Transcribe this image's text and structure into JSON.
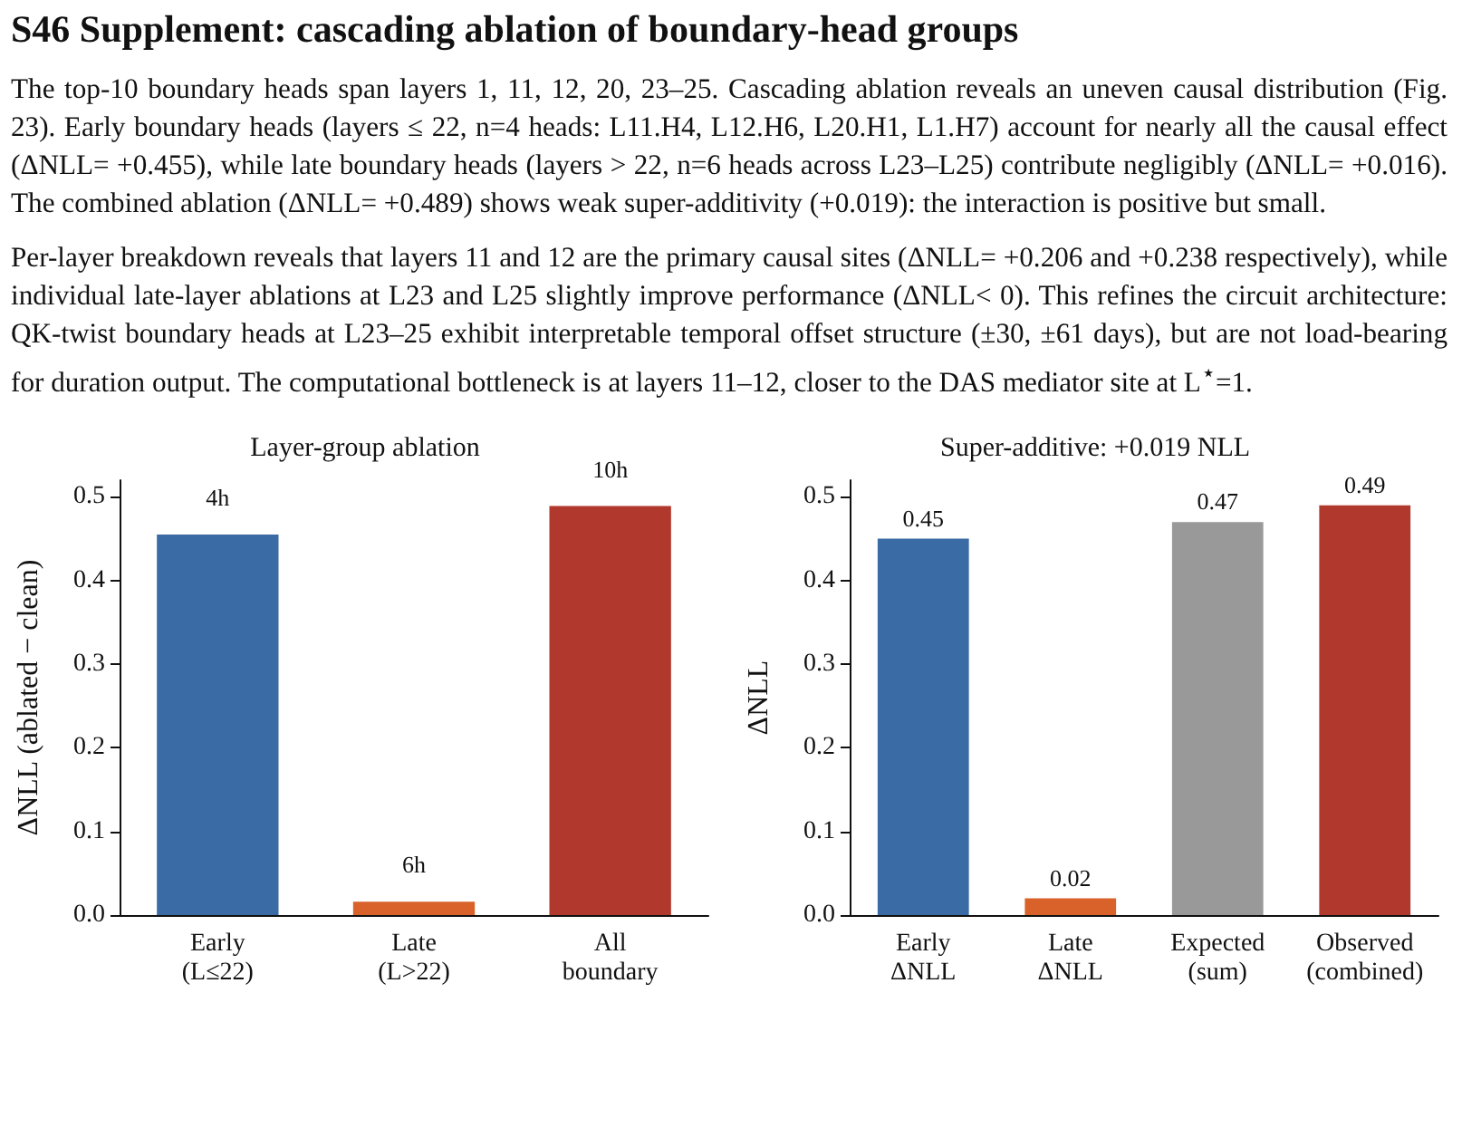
{
  "chart_data": [
    {
      "type": "other",
      "title": "S46   Supplement: cascading ablation of boundary-head groups",
      "annotations": [
        "The top-10 boundary heads span layers 1, 11, 12, 20, 23–25. Cascading ablation reveals an uneven causal distribution (Fig. 23). Early boundary heads (layers ≤ 22, n=4 heads: L11.H4, L12.H6, L20.H1, L1.H7) account for nearly all the causal effect (ΔNLL= +0.455), while late boundary heads (layers > 22, n=6 heads across L23–L25) contribute negligibly (ΔNLL= +0.016). The combined ablation (ΔNLL= +0.489) shows weak super-additivity (+0.019): the interaction is positive but small.",
        "Per-layer breakdown reveals that layers 11 and 12 are the primary causal sites (ΔNLL= +0.206 and +0.238 respectively), while individual late-layer ablations at L23 and L25 slightly improve performance (ΔNLL< 0). This refines the circuit architecture: QK-twist boundary heads at L23–25 exhibit interpretable temporal offset structure (±30, ±61 days), but are not load-bearing for duration output. The computational bottleneck is at layers 11–12, closer to the DAS mediator site at L$^{⋆}$=1."
      ]
    },
    {
      "type": "bar",
      "title": "Layer-group ablation",
      "ylabel": "ΔNLL (ablated − clean)",
      "categories": [
        "Early\n(L≤22)",
        "Late\n(L>22)",
        "All\nboundary"
      ],
      "values": [
        0.455,
        0.016,
        0.489
      ],
      "colors": [
        "#3a6ba5",
        "#d9622b",
        "#b0382c"
      ],
      "annotations": [
        {
          "text": "4h",
          "x": "Early\n(L≤22)",
          "y": 0.455
        },
        {
          "text": "6h",
          "x": "Late\n(L>22)",
          "y": 0.016
        },
        {
          "text": "10h",
          "x": "All\nboundary",
          "y": 0.489
        }
      ],
      "ylim": [
        0,
        0.52
      ],
      "yticks": [
        {
          "value": 0,
          "label": "0.0"
        },
        0.1,
        0.2,
        0.3,
        0.4,
        0.5
      ]
    },
    {
      "type": "bar",
      "title": "Super-additive: +0.019 NLL",
      "ylabel": "ΔNLL",
      "categories": [
        "Early\nΔNLL",
        "Late\nΔNLL",
        "Expected\n(sum)",
        "Observed\n(combined)"
      ],
      "values": [
        0.45,
        0.02,
        0.47,
        0.49
      ],
      "colors": [
        "#3a6ba5",
        "#d9622b",
        "#999999",
        "#b0382c"
      ],
      "data_labels": true,
      "ylim": [
        0,
        0.52
      ],
      "yticks": [
        {
          "value": 0,
          "label": "0.0"
        },
        0.1,
        0.2,
        0.3,
        0.4,
        0.5
      ]
    }
  ]
}
